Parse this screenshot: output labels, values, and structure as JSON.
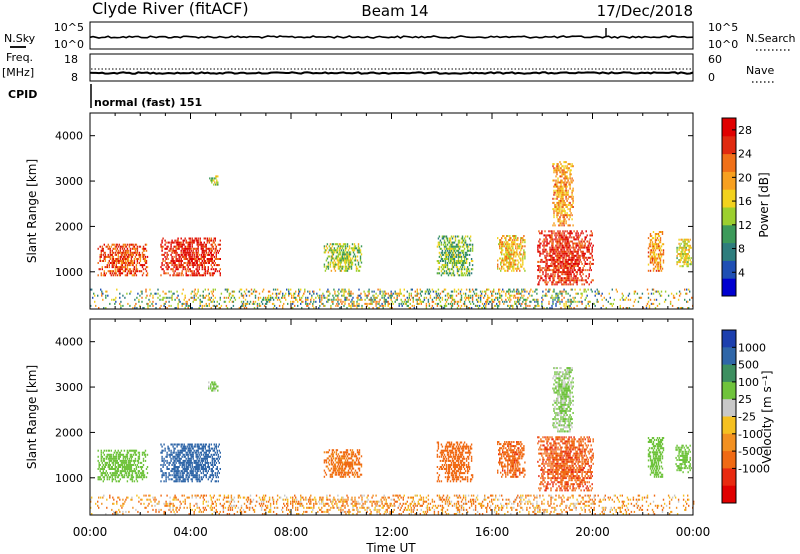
{
  "header": {
    "station": "Clyde River (fitACF)",
    "beam": "Beam 14",
    "date": "17/Dec/2018"
  },
  "top_strip": {
    "left_label": "N.Sky",
    "left_ticks": [
      "10^5",
      "10^0"
    ],
    "right_label": "N.Search",
    "right_ticks": [
      "10^5",
      "10^0"
    ]
  },
  "freq_strip": {
    "left_label_line1": "Freq.",
    "left_label_line2": "[MHz]",
    "left_ticks": [
      "18",
      "8"
    ],
    "right_label": "Nave",
    "right_ticks": [
      "60",
      "0"
    ],
    "cpid_label": "CPID",
    "cpid_text": "normal (fast) 151"
  },
  "chart_data": [
    {
      "type": "heatmap",
      "quantity": "power",
      "ylabel": "Slant Range [km]",
      "xlabel": "",
      "ylim": [
        180,
        4500
      ],
      "xlim_hours": [
        0,
        24
      ],
      "y_ticks": [
        "1000",
        "2000",
        "3000",
        "4000"
      ],
      "colorbar": {
        "label": "Power [dB]",
        "ticks": [
          "4",
          "8",
          "12",
          "16",
          "20",
          "24",
          "28"
        ],
        "range": [
          0,
          30
        ],
        "colors": [
          "#0000d0",
          "#1f4fb4",
          "#2e7d7d",
          "#3c9a5a",
          "#9ccf2f",
          "#f2d21e",
          "#f7a020",
          "#f07018",
          "#e02a10",
          "#e00000"
        ]
      },
      "regions": [
        {
          "t": [
            0.3,
            2.3
          ],
          "r": [
            900,
            1600
          ],
          "level": 24
        },
        {
          "t": [
            2.8,
            5.2
          ],
          "r": [
            900,
            1750
          ],
          "level": 26
        },
        {
          "t": [
            4.7,
            5.1
          ],
          "r": [
            2900,
            3100
          ],
          "level": 14
        },
        {
          "t": [
            9.3,
            10.8
          ],
          "r": [
            1000,
            1600
          ],
          "level": 14
        },
        {
          "t": [
            13.8,
            15.2
          ],
          "r": [
            900,
            1800
          ],
          "level": 12
        },
        {
          "t": [
            16.2,
            17.3
          ],
          "r": [
            1000,
            1800
          ],
          "level": 18
        },
        {
          "t": [
            17.8,
            20.0
          ],
          "r": [
            700,
            1900
          ],
          "level": 26
        },
        {
          "t": [
            18.4,
            19.2
          ],
          "r": [
            2000,
            3400
          ],
          "level": 20
        },
        {
          "t": [
            22.2,
            22.8
          ],
          "r": [
            1000,
            1900
          ],
          "level": 20
        },
        {
          "t": [
            23.3,
            23.9
          ],
          "r": [
            1100,
            1700
          ],
          "level": 16
        },
        {
          "t": [
            0.0,
            24.0
          ],
          "r": [
            180,
            600
          ],
          "level": 10
        }
      ]
    },
    {
      "type": "heatmap",
      "quantity": "velocity",
      "ylabel": "Slant Range [km]",
      "xlabel": "Time UT",
      "ylim": [
        180,
        4500
      ],
      "xlim_hours": [
        0,
        24
      ],
      "x_ticks": [
        "00:00",
        "04:00",
        "08:00",
        "12:00",
        "16:00",
        "20:00",
        "00:00"
      ],
      "y_ticks": [
        "1000",
        "2000",
        "3000",
        "4000"
      ],
      "colorbar": {
        "label": "Velocity [m s⁻¹]",
        "ticks": [
          "1000",
          "500",
          "100",
          "25",
          "-25",
          "-100",
          "-500",
          "-1000"
        ],
        "colors": [
          "#1c3fae",
          "#2f66a8",
          "#3d8f60",
          "#6fc33c",
          "#c8c8c8",
          "#f5c020",
          "#f29020",
          "#f06a14",
          "#e82a10",
          "#e00000"
        ]
      },
      "regions": [
        {
          "t": [
            0.3,
            2.3
          ],
          "r": [
            900,
            1600
          ],
          "v": 300
        },
        {
          "t": [
            2.8,
            5.2
          ],
          "r": [
            900,
            1750
          ],
          "v": 800
        },
        {
          "t": [
            4.7,
            5.1
          ],
          "r": [
            2900,
            3100
          ],
          "v": 200
        },
        {
          "t": [
            9.3,
            10.8
          ],
          "r": [
            1000,
            1600
          ],
          "v": -150
        },
        {
          "t": [
            13.8,
            15.2
          ],
          "r": [
            900,
            1800
          ],
          "v": -300
        },
        {
          "t": [
            16.2,
            17.3
          ],
          "r": [
            1000,
            1800
          ],
          "v": -400
        },
        {
          "t": [
            17.8,
            20.0
          ],
          "r": [
            700,
            1900
          ],
          "v": -450
        },
        {
          "t": [
            18.4,
            19.2
          ],
          "r": [
            2000,
            3400
          ],
          "v": 150
        },
        {
          "t": [
            22.2,
            22.8
          ],
          "r": [
            1000,
            1900
          ],
          "v": 300
        },
        {
          "t": [
            23.3,
            23.9
          ],
          "r": [
            1100,
            1700
          ],
          "v": 300
        },
        {
          "t": [
            0.0,
            24.0
          ],
          "r": [
            180,
            600
          ],
          "v": -60
        }
      ]
    }
  ]
}
